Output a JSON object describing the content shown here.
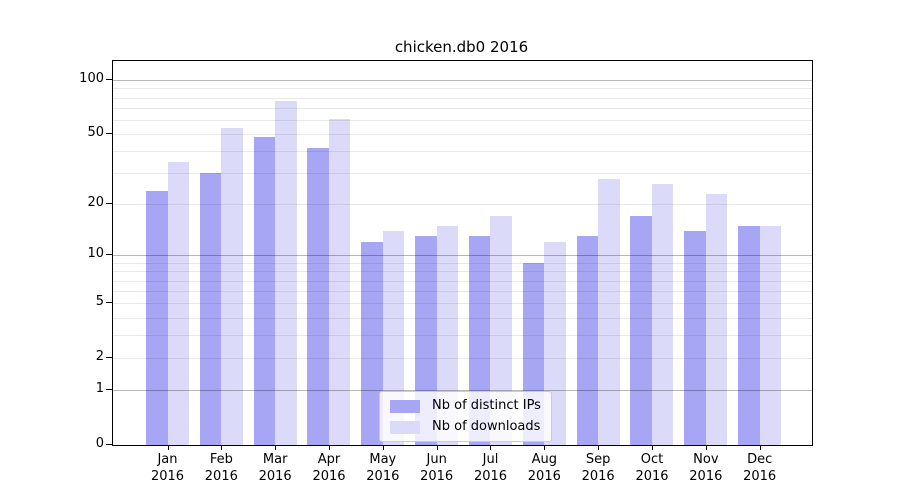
{
  "chart_data": {
    "type": "bar",
    "title": "chicken.db0 2016",
    "categories": [
      "Jan 2016",
      "Feb 2016",
      "Mar 2016",
      "Apr 2016",
      "May 2016",
      "Jun 2016",
      "Jul 2016",
      "Aug 2016",
      "Sep 2016",
      "Oct 2016",
      "Nov 2016",
      "Dec 2016"
    ],
    "series": [
      {
        "name": "Nb of distinct IPs",
        "color": "#a6a6f4",
        "values": [
          24,
          30,
          48,
          42,
          12,
          13,
          13,
          9,
          13,
          17,
          14,
          15
        ]
      },
      {
        "name": "Nb of downloads",
        "color": "#dbdbf9",
        "values": [
          35,
          54,
          77,
          61,
          14,
          15,
          17,
          12,
          28,
          26,
          23,
          15
        ]
      }
    ],
    "y_axis": {
      "scale": "log1p",
      "range": [
        0,
        100
      ],
      "ticks": [
        {
          "v": 0,
          "label": "0"
        },
        {
          "v": 1,
          "label": "1"
        },
        {
          "v": 2,
          "label": "2"
        },
        {
          "v": 5,
          "label": "5"
        },
        {
          "v": 10,
          "label": "10"
        },
        {
          "v": 20,
          "label": "20"
        },
        {
          "v": 50,
          "label": "50"
        },
        {
          "v": 100,
          "label": "100"
        }
      ],
      "minor_gridlines": [
        3,
        4,
        6,
        7,
        8,
        9,
        30,
        40,
        60,
        70,
        80,
        90
      ],
      "major_gridlines": [
        1,
        10,
        100
      ]
    },
    "xlabel": "",
    "ylabel": "",
    "grid": true,
    "legend": {
      "position": "inside-bottom-center"
    }
  }
}
